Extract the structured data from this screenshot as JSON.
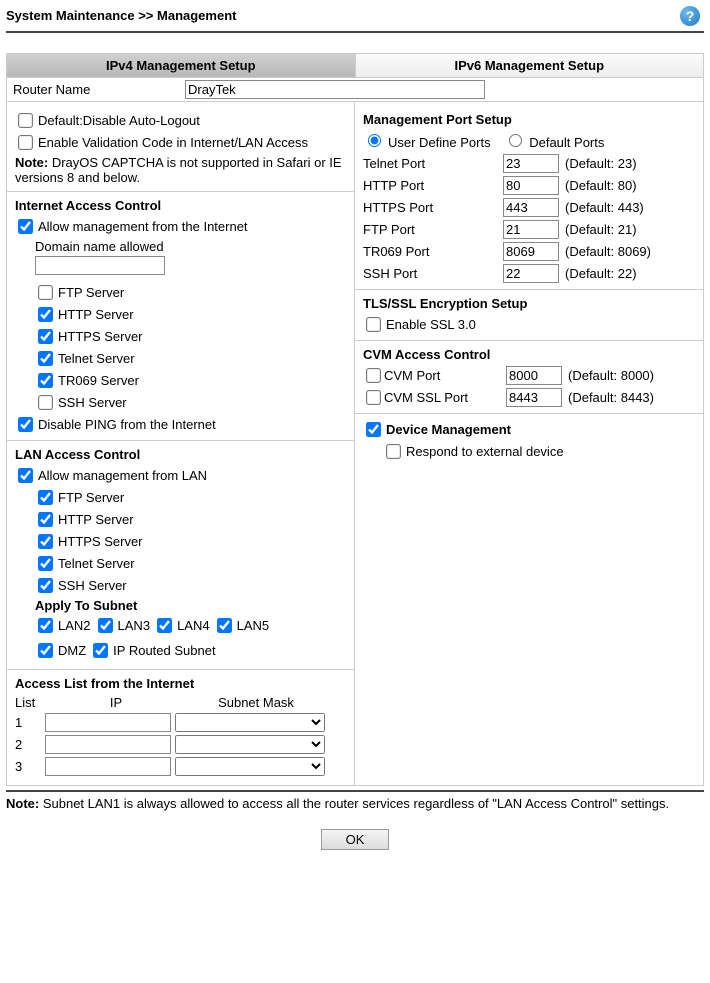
{
  "breadcrumb": "System Maintenance >> Management",
  "tabs": {
    "ipv4": "IPv4 Management Setup",
    "ipv6": "IPv6 Management Setup"
  },
  "routerName": {
    "label": "Router Name",
    "value": "DrayTek"
  },
  "left": {
    "defaultDisable": "Default:Disable Auto-Logout",
    "enableValidation": "Enable Validation Code in Internet/LAN Access",
    "noteBold": "Note:",
    "noteText": " DrayOS CAPTCHA is not supported in Safari or IE versions 8 and below.",
    "iac": {
      "head": "Internet Access Control",
      "allow": "Allow management from the Internet",
      "domainAllowed": "Domain name allowed",
      "ftp": "FTP Server",
      "http": "HTTP Server",
      "https": "HTTPS Server",
      "telnet": "Telnet Server",
      "tr069": "TR069 Server",
      "ssh": "SSH Server",
      "disablePing": "Disable PING from the Internet"
    },
    "lac": {
      "head": "LAN Access Control",
      "allow": "Allow management from LAN",
      "ftp": "FTP Server",
      "http": "HTTP Server",
      "https": "HTTPS Server",
      "telnet": "Telnet Server",
      "ssh": "SSH Server",
      "applyHead": "Apply To Subnet",
      "lan2": "LAN2",
      "lan3": "LAN3",
      "lan4": "LAN4",
      "lan5": "LAN5",
      "dmz": "DMZ",
      "iprouted": "IP Routed Subnet"
    },
    "acl": {
      "head": "Access List from the Internet",
      "colList": "List",
      "colIP": "IP",
      "colMask": "Subnet Mask",
      "rows": [
        "1",
        "2",
        "3"
      ]
    }
  },
  "right": {
    "mps": {
      "head": "Management Port Setup",
      "userDefine": "User Define Ports",
      "defaultPorts": "Default Ports",
      "ports": [
        {
          "label": "Telnet Port",
          "value": "23",
          "def": "(Default: 23)"
        },
        {
          "label": "HTTP Port",
          "value": "80",
          "def": "(Default: 80)"
        },
        {
          "label": "HTTPS Port",
          "value": "443",
          "def": "(Default: 443)"
        },
        {
          "label": "FTP Port",
          "value": "21",
          "def": "(Default: 21)"
        },
        {
          "label": "TR069 Port",
          "value": "8069",
          "def": "(Default: 8069)"
        },
        {
          "label": "SSH Port",
          "value": "22",
          "def": "(Default: 22)"
        }
      ]
    },
    "tls": {
      "head": "TLS/SSL Encryption Setup",
      "enable": "Enable SSL 3.0"
    },
    "cvm": {
      "head": "CVM Access Control",
      "port": "CVM Port",
      "portVal": "8000",
      "portDef": "(Default: 8000)",
      "ssl": "CVM SSL Port",
      "sslVal": "8443",
      "sslDef": "(Default: 8443)"
    },
    "dm": {
      "head": "Device Management",
      "respond": "Respond to external device"
    }
  },
  "footer": {
    "noteBold": "Note:",
    "noteText": " Subnet LAN1 is always allowed to access all the router services regardless of \"LAN Access Control\" settings."
  },
  "ok": "OK"
}
